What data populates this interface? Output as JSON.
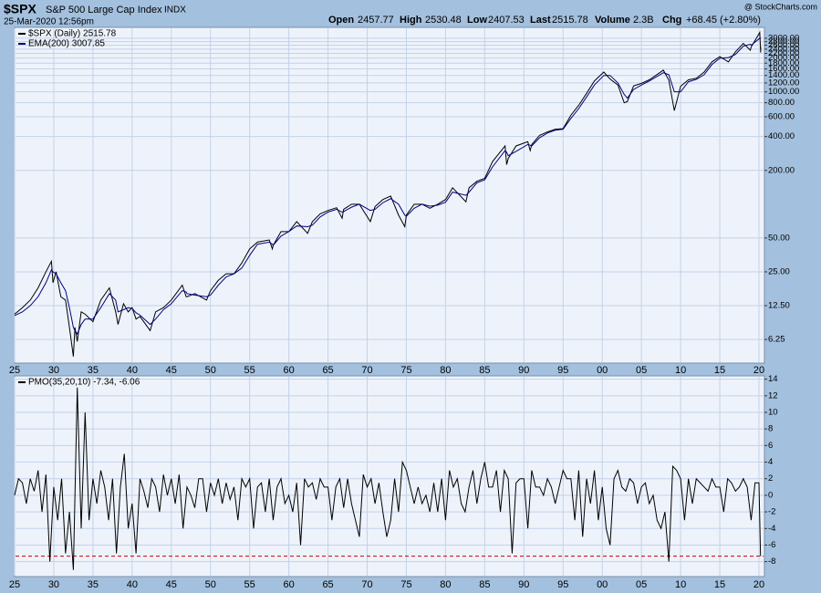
{
  "header": {
    "symbol": "$SPX",
    "name": "S&P 500 Large Cap Index",
    "exchange": "INDX",
    "date": "25-Mar-2020 12:56pm",
    "open_label": "Open",
    "open": "2457.77",
    "high_label": "High",
    "high": "2530.48",
    "low_label": "Low",
    "low": "2407.53",
    "last_label": "Last",
    "last": "2515.78",
    "volume_label": "Volume",
    "volume": "2.3B",
    "chg_label": "Chg",
    "chg": "+68.45 (+2.80%)",
    "credit": "@ StockCharts.com"
  },
  "chart_data": [
    {
      "type": "line",
      "log_scale": true,
      "grid": true,
      "x": [
        1925,
        1926,
        1927,
        1928,
        1929,
        1929.7,
        1929.9,
        1930.3,
        1930.9,
        1931.5,
        1932,
        1932.5,
        1932.7,
        1933,
        1933.5,
        1934,
        1935,
        1936,
        1937.1,
        1937.9,
        1938.2,
        1938.9,
        1939.5,
        1940,
        1940.5,
        1941,
        1942.3,
        1943,
        1944,
        1945,
        1946.4,
        1946.9,
        1947,
        1948,
        1949.5,
        1950,
        1951,
        1952,
        1953,
        1954,
        1955,
        1956,
        1957.5,
        1957.9,
        1958,
        1959,
        1960,
        1961,
        1962.4,
        1963,
        1964,
        1965,
        1966.1,
        1966.8,
        1967,
        1968,
        1969,
        1970.4,
        1971,
        1972,
        1973,
        1974,
        1974.8,
        1975,
        1976,
        1977,
        1978,
        1979,
        1980,
        1980.9,
        1982.6,
        1983,
        1984,
        1985,
        1986,
        1987.6,
        1987.8,
        1988,
        1989,
        1990.5,
        1990.8,
        1991,
        1992,
        1993,
        1994,
        1995,
        1996,
        1997,
        1998,
        1999,
        2000.2,
        2001,
        2002,
        2002.8,
        2003.2,
        2004,
        2005,
        2006,
        2007.8,
        2008.5,
        2009.2,
        2010,
        2011,
        2012,
        2013,
        2014,
        2015,
        2016.1,
        2017,
        2018,
        2018.9,
        2019,
        2020.1,
        2020.22,
        2020.23
      ],
      "series": [
        {
          "name": "$SPX (Daily) 2515.78",
          "color": "#000000",
          "values": [
            10.5,
            12,
            14,
            18,
            25,
            31,
            20,
            25,
            15,
            14,
            8,
            4.4,
            8,
            6,
            11,
            10.5,
            9,
            14,
            18,
            11,
            8.5,
            13,
            11,
            12,
            9.5,
            10,
            7.5,
            11,
            12,
            14,
            19,
            15,
            15,
            16,
            14,
            17,
            21,
            24,
            24,
            30,
            40,
            46,
            48,
            40,
            43,
            57,
            57,
            70,
            55,
            70,
            82,
            88,
            93,
            75,
            90,
            100,
            100,
            70,
            95,
            110,
            118,
            80,
            63,
            80,
            100,
            100,
            92,
            100,
            110,
            140,
            105,
            140,
            160,
            170,
            240,
            330,
            225,
            255,
            330,
            360,
            300,
            340,
            410,
            440,
            465,
            470,
            620,
            760,
            970,
            1250,
            1500,
            1300,
            1150,
            800,
            820,
            1130,
            1190,
            1280,
            1560,
            1270,
            680,
            1120,
            1280,
            1320,
            1500,
            1850,
            2060,
            1850,
            2270,
            2700,
            2350,
            2500,
            3380,
            2237,
            2515.78
          ]
        },
        {
          "name": "EMA(200) 3007.85",
          "color": "#000080",
          "values": [
            10.2,
            11,
            12.5,
            15,
            20,
            26,
            25,
            24,
            20,
            17,
            12,
            8,
            7.5,
            7,
            8.5,
            9.5,
            9.5,
            12,
            16,
            14,
            11,
            11.5,
            12,
            11.8,
            10.8,
            10.3,
            8.5,
            9.5,
            11.5,
            13,
            17,
            16.5,
            16,
            15.5,
            15,
            15.5,
            19,
            22.5,
            24,
            27,
            35,
            44,
            46,
            44,
            43,
            52,
            57,
            64,
            63,
            65,
            77,
            85,
            90,
            85,
            86,
            94,
            100,
            88,
            90,
            103,
            112,
            100,
            80,
            78,
            92,
            100,
            96,
            98,
            104,
            128,
            120,
            128,
            155,
            165,
            215,
            300,
            290,
            270,
            295,
            340,
            335,
            330,
            390,
            430,
            455,
            465,
            580,
            710,
            900,
            1150,
            1400,
            1400,
            1200,
            950,
            880,
            1050,
            1150,
            1250,
            1480,
            1420,
            1000,
            1000,
            1230,
            1290,
            1420,
            1750,
            1990,
            2020,
            2150,
            2550,
            2650,
            2600,
            3000,
            3000,
            3007.85
          ]
        }
      ],
      "xlim": [
        1925,
        2020.7
      ],
      "xticks": [
        {
          "value": 1925,
          "label": "25"
        },
        {
          "value": 1930,
          "label": "30"
        },
        {
          "value": 1935,
          "label": "35"
        },
        {
          "value": 1940,
          "label": "40"
        },
        {
          "value": 1945,
          "label": "45"
        },
        {
          "value": 1950,
          "label": "50"
        },
        {
          "value": 1955,
          "label": "55"
        },
        {
          "value": 1960,
          "label": "60"
        },
        {
          "value": 1965,
          "label": "65"
        },
        {
          "value": 1970,
          "label": "70"
        },
        {
          "value": 1975,
          "label": "75"
        },
        {
          "value": 1980,
          "label": "80"
        },
        {
          "value": 1985,
          "label": "85"
        },
        {
          "value": 1990,
          "label": "90"
        },
        {
          "value": 1995,
          "label": "95"
        },
        {
          "value": 2000,
          "label": "00"
        },
        {
          "value": 2005,
          "label": "05"
        },
        {
          "value": 2010,
          "label": "10"
        },
        {
          "value": 2015,
          "label": "15"
        },
        {
          "value": 2020,
          "label": "20"
        }
      ],
      "ylim": [
        3.85,
        3750
      ],
      "yticks": [
        6.25,
        {
          "value": 12.5,
          "label": "12.50"
        },
        {
          "value": 25,
          "label": "25.00"
        },
        {
          "value": 50,
          "label": "50.00"
        },
        {
          "value": 200,
          "label": "200.00"
        },
        {
          "value": 400,
          "label": "400.00"
        },
        {
          "value": 600,
          "label": "600.00"
        },
        {
          "value": 800,
          "label": "800.00"
        },
        {
          "value": 1000,
          "label": "1000.00"
        },
        {
          "value": 1200,
          "label": "1200.00"
        },
        {
          "value": 1400,
          "label": "1400.00"
        },
        {
          "value": 1600,
          "label": "1600.00"
        },
        {
          "value": 1800,
          "label": "1800.00"
        },
        {
          "value": 2000,
          "label": "2000.00"
        },
        {
          "value": 2200,
          "label": "2200.00"
        },
        {
          "value": 2400,
          "label": "2400.00"
        },
        {
          "value": 2600,
          "label": "2600.00"
        },
        {
          "value": 2800,
          "label": "2800.00"
        },
        {
          "value": 3000,
          "label": "3000.00"
        }
      ]
    },
    {
      "type": "line",
      "log_scale": false,
      "grid": true,
      "x": [
        1925,
        1925.5,
        1926,
        1926.5,
        1927,
        1927.5,
        1928,
        1928.5,
        1929,
        1929.5,
        1930,
        1930.5,
        1931,
        1931.5,
        1932,
        1932.5,
        1933,
        1933.5,
        1934,
        1934.5,
        1935,
        1935.5,
        1936,
        1936.5,
        1937,
        1937.5,
        1938,
        1938.5,
        1939,
        1939.5,
        1940,
        1940.5,
        1941,
        1941.5,
        1942,
        1942.5,
        1943,
        1943.5,
        1944,
        1944.5,
        1945,
        1945.5,
        1946,
        1946.5,
        1947,
        1947.5,
        1948,
        1948.5,
        1949,
        1949.5,
        1950,
        1950.5,
        1951,
        1951.5,
        1952,
        1952.5,
        1953,
        1953.5,
        1954,
        1954.5,
        1955,
        1955.5,
        1956,
        1956.5,
        1957,
        1957.5,
        1958,
        1958.5,
        1959,
        1959.5,
        1960,
        1960.5,
        1961,
        1961.5,
        1962,
        1962.5,
        1963,
        1963.5,
        1964,
        1964.5,
        1965,
        1965.5,
        1966,
        1966.5,
        1967,
        1967.5,
        1968,
        1968.5,
        1969,
        1969.5,
        1970,
        1970.5,
        1971,
        1971.5,
        1972,
        1972.5,
        1973,
        1973.5,
        1974,
        1974.5,
        1975,
        1975.5,
        1976,
        1976.5,
        1977,
        1977.5,
        1978,
        1978.5,
        1979,
        1979.5,
        1980,
        1980.5,
        1981,
        1981.5,
        1982,
        1982.5,
        1983,
        1983.5,
        1984,
        1984.5,
        1985,
        1985.5,
        1986,
        1986.5,
        1987,
        1987.5,
        1988,
        1988.5,
        1989,
        1989.5,
        1990,
        1990.5,
        1991,
        1991.5,
        1992,
        1992.5,
        1993,
        1993.5,
        1994,
        1994.5,
        1995,
        1995.5,
        1996,
        1996.5,
        1997,
        1997.5,
        1998,
        1998.5,
        1999,
        1999.5,
        2000,
        2000.5,
        2001,
        2001.5,
        2002,
        2002.5,
        2003,
        2003.5,
        2004,
        2004.5,
        2005,
        2005.5,
        2006,
        2006.5,
        2007,
        2007.5,
        2008,
        2008.5,
        2009,
        2009.5,
        2010,
        2010.5,
        2011,
        2011.5,
        2012,
        2012.5,
        2013,
        2013.5,
        2014,
        2014.5,
        2015,
        2015.5,
        2016,
        2016.5,
        2017,
        2017.5,
        2018,
        2018.5,
        2019,
        2019.5,
        2020,
        2020.2
      ],
      "series": [
        {
          "name": "PMO(35,20,10) -7.34, -6.06",
          "color": "#000000",
          "values": [
            0,
            2,
            1.5,
            -1,
            2,
            0.5,
            3,
            -2,
            2.5,
            -8,
            1,
            -3,
            2,
            -7,
            -2,
            -9,
            13,
            -4,
            10,
            -3,
            2,
            -1,
            3,
            1,
            -3,
            2,
            -7,
            1,
            5,
            -4,
            -1,
            -7,
            2,
            0.5,
            -1.5,
            2,
            1,
            -2,
            2.5,
            0,
            2,
            -1,
            2.5,
            -4,
            1,
            0,
            -1.5,
            2,
            2,
            -2,
            1.5,
            0,
            2,
            -1,
            1.5,
            -0.5,
            1,
            -3,
            2,
            1,
            2,
            -4,
            1,
            1.5,
            -2,
            2,
            -3,
            1,
            2,
            -1,
            0,
            -2,
            1.5,
            -6,
            2,
            1,
            1.5,
            -0.5,
            2,
            1,
            1,
            -3,
            1,
            2,
            -1.5,
            2,
            -1,
            -3,
            -5,
            2.5,
            1,
            2,
            -1,
            1.5,
            -2,
            -5,
            -3,
            2,
            -2,
            4,
            3,
            1,
            -1,
            1,
            -1,
            0,
            -2,
            1.5,
            -2,
            2,
            -3,
            3,
            1,
            2,
            -1,
            -2,
            1,
            3,
            -1,
            2,
            4,
            1,
            1,
            3,
            -2,
            3,
            2,
            -7,
            1.5,
            2,
            2,
            -4,
            3,
            1,
            1,
            0,
            2,
            1,
            -1,
            1,
            3,
            2,
            2,
            -3,
            3,
            -5,
            2,
            -1,
            3,
            -3,
            1,
            -4,
            -6,
            2,
            3,
            1,
            0.5,
            2,
            1.5,
            -1,
            1,
            1.5,
            -1,
            0,
            -3,
            -4,
            -2,
            -8,
            3.5,
            3,
            2,
            -3,
            2,
            -1,
            2,
            1.5,
            1,
            0.5,
            2,
            1,
            1,
            -2,
            2,
            1.5,
            0.5,
            1,
            2,
            1,
            -3,
            1.5,
            1.5,
            -7.34
          ]
        }
      ],
      "hline": -7.34,
      "hline_color": "#cc0000",
      "xlim": [
        1925,
        2020.7
      ],
      "xticks": [
        {
          "value": 1925,
          "label": "25"
        },
        {
          "value": 1930,
          "label": "30"
        },
        {
          "value": 1935,
          "label": "35"
        },
        {
          "value": 1940,
          "label": "40"
        },
        {
          "value": 1945,
          "label": "45"
        },
        {
          "value": 1950,
          "label": "50"
        },
        {
          "value": 1955,
          "label": "55"
        },
        {
          "value": 1960,
          "label": "60"
        },
        {
          "value": 1965,
          "label": "65"
        },
        {
          "value": 1970,
          "label": "70"
        },
        {
          "value": 1975,
          "label": "75"
        },
        {
          "value": 1980,
          "label": "80"
        },
        {
          "value": 1985,
          "label": "85"
        },
        {
          "value": 1990,
          "label": "90"
        },
        {
          "value": 1995,
          "label": "95"
        },
        {
          "value": 2000,
          "label": "00"
        },
        {
          "value": 2005,
          "label": "05"
        },
        {
          "value": 2010,
          "label": "10"
        },
        {
          "value": 2015,
          "label": "15"
        },
        {
          "value": 2020,
          "label": "20"
        }
      ],
      "ylim": [
        -9.8,
        14.4
      ],
      "yticks": [
        -8,
        -6,
        -4,
        -2,
        0,
        2,
        4,
        6,
        8,
        10,
        12,
        14
      ]
    }
  ]
}
